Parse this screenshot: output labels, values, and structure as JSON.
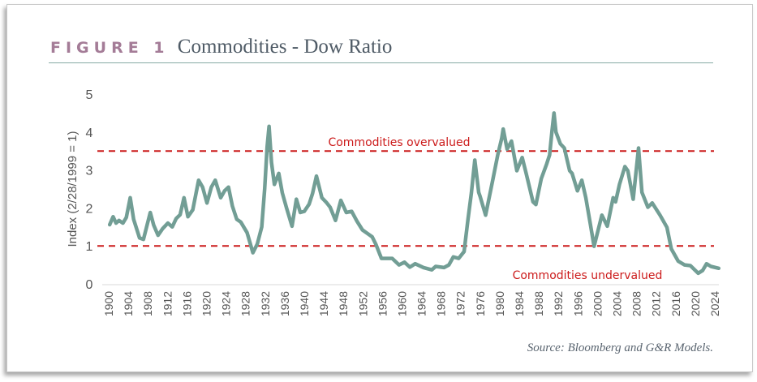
{
  "figure": {
    "label": "FIGURE 1",
    "title": "Commodities - Dow Ratio",
    "source": "Source: Bloomberg and G&R Models."
  },
  "colors": {
    "line": "#729e95",
    "threshold": "#cc1b1b",
    "label_fig": "#a47c97",
    "title": "#4f5b66",
    "rule": "#86aaa4",
    "axis_text": "#555555"
  },
  "chart_data": {
    "type": "line",
    "title": "Commodities - Dow Ratio",
    "xlabel": "",
    "ylabel": "Index (2/28/1999 = 1)",
    "xlim": [
      1900,
      2025
    ],
    "ylim": [
      0,
      5
    ],
    "yticks": [
      0,
      1,
      2,
      3,
      4,
      5
    ],
    "xticks": [
      1900,
      1904,
      1908,
      1912,
      1916,
      1920,
      1924,
      1928,
      1932,
      1936,
      1940,
      1944,
      1948,
      1952,
      1956,
      1960,
      1964,
      1968,
      1972,
      1976,
      1980,
      1984,
      1988,
      1992,
      1996,
      2000,
      2004,
      2008,
      2012,
      2016,
      2020,
      2024
    ],
    "grid": false,
    "legend": "none",
    "annotations": [
      {
        "text": "Commodities overvalued",
        "y": 3.5,
        "style": "dashed"
      },
      {
        "text": "Commodities undervalued",
        "y": 1.0,
        "style": "dashed"
      }
    ],
    "series": [
      {
        "name": "Commodities - Dow Ratio",
        "x": [
          1900.2,
          1900.9,
          1901.5,
          1902.1,
          1902.9,
          1903.6,
          1904.4,
          1905.1,
          1906.3,
          1907.1,
          1908.5,
          1909.2,
          1910.1,
          1911.0,
          1912.1,
          1913.0,
          1913.8,
          1914.6,
          1915.4,
          1916.2,
          1917.2,
          1918.4,
          1919.2,
          1920.1,
          1921.0,
          1921.8,
          1922.9,
          1923.7,
          1924.5,
          1925.3,
          1926.2,
          1927.0,
          1928.3,
          1929.5,
          1930.4,
          1931.3,
          1931.9,
          1932.4,
          1932.8,
          1933.3,
          1933.9,
          1934.8,
          1935.5,
          1936.4,
          1937.5,
          1938.4,
          1939.2,
          1940.0,
          1941.0,
          1941.7,
          1942.5,
          1943.6,
          1944.5,
          1945.3,
          1946.4,
          1947.5,
          1948.6,
          1949.7,
          1950.8,
          1951.9,
          1953.0,
          1953.9,
          1954.7,
          1955.8,
          1957.0,
          1958.0,
          1959.4,
          1960.5,
          1961.6,
          1962.7,
          1964.4,
          1966.1,
          1966.9,
          1968.6,
          1969.6,
          1970.5,
          1971.6,
          1972.7,
          1973.5,
          1974.2,
          1974.9,
          1975.7,
          1976.0,
          1977.1,
          1978.5,
          1979.6,
          1980.4,
          1980.7,
          1981.5,
          1982.4,
          1983.5,
          1984.6,
          1985.4,
          1986.8,
          1987.4,
          1988.5,
          1989.6,
          1990.2,
          1990.7,
          1991.1,
          1991.5,
          1992.4,
          1993.2,
          1994.3,
          1994.8,
          1995.9,
          1996.8,
          1997.6,
          1998.5,
          1999.3,
          2000.9,
          2002.0,
          2003.2,
          2003.7,
          2004.5,
          2005.6,
          2006.2,
          2007.3,
          2008.4,
          2009.1,
          2010.3,
          2011.2,
          2012.8,
          2014.2,
          2015.1,
          2016.5,
          2017.8,
          2019.0,
          2020.6,
          2021.5,
          2022.3,
          2023.2,
          2024.8
        ],
        "values": [
          1.56,
          1.77,
          1.6,
          1.67,
          1.6,
          1.75,
          2.27,
          1.7,
          1.21,
          1.17,
          1.88,
          1.55,
          1.28,
          1.45,
          1.6,
          1.5,
          1.72,
          1.82,
          2.27,
          1.77,
          1.95,
          2.73,
          2.55,
          2.13,
          2.55,
          2.73,
          2.27,
          2.45,
          2.55,
          2.05,
          1.7,
          1.63,
          1.35,
          0.82,
          1.05,
          1.5,
          2.5,
          3.6,
          4.15,
          3.2,
          2.62,
          2.91,
          2.4,
          1.99,
          1.52,
          2.23,
          1.88,
          1.91,
          2.1,
          2.38,
          2.84,
          2.27,
          2.15,
          2.02,
          1.67,
          2.2,
          1.88,
          1.91,
          1.65,
          1.42,
          1.32,
          1.24,
          1.03,
          0.67,
          0.67,
          0.67,
          0.5,
          0.57,
          0.44,
          0.53,
          0.43,
          0.37,
          0.46,
          0.43,
          0.5,
          0.71,
          0.67,
          0.85,
          1.7,
          2.4,
          3.26,
          2.41,
          2.3,
          1.81,
          2.69,
          3.4,
          3.83,
          4.08,
          3.55,
          3.76,
          2.98,
          3.33,
          2.91,
          2.16,
          2.09,
          2.77,
          3.16,
          3.4,
          4.04,
          4.5,
          4.0,
          3.69,
          3.58,
          2.98,
          2.91,
          2.45,
          2.73,
          2.27,
          1.6,
          0.99,
          1.81,
          1.52,
          2.27,
          2.16,
          2.62,
          3.09,
          2.98,
          2.23,
          3.58,
          2.41,
          2.02,
          2.13,
          1.81,
          1.49,
          0.92,
          0.6,
          0.5,
          0.48,
          0.28,
          0.35,
          0.53,
          0.46,
          0.41
        ]
      }
    ]
  }
}
